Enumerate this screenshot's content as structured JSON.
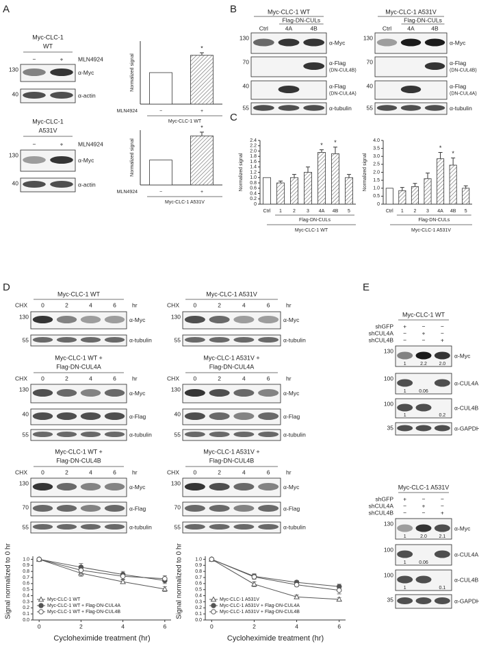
{
  "panels": [
    "A",
    "B",
    "C",
    "D",
    "E"
  ],
  "blots": [
    {
      "title": [
        "Myc-CLC-1",
        "WT"
      ],
      "treatment": "MLN4924",
      "lanes": [
        "−",
        "+"
      ],
      "rows": [
        {
          "mw": 130,
          "antibody": "α-Myc"
        },
        {
          "mw": 40,
          "antibody": "α-actin"
        }
      ]
    },
    {
      "title": [
        "Myc-CLC-1",
        "A531V"
      ],
      "treatment": "MLN4924",
      "lanes": [
        "−",
        "+"
      ],
      "rows": [
        {
          "mw": 130,
          "antibody": "α-Myc"
        },
        {
          "mw": 40,
          "antibody": "α-actin"
        }
      ]
    },
    {
      "title": [
        "Myc-CLC-1 WT"
      ],
      "header": "Flag-DN-CULs",
      "lanes": [
        "Ctrl",
        "4A",
        "4B"
      ],
      "rows": [
        {
          "mw": 130,
          "antibody": "α-Myc"
        },
        {
          "mw": 70,
          "antibody": "α-Flag",
          "detail": "(DN-CUL4B)"
        },
        {
          "mw": 40,
          "antibody": "α-Flag",
          "detail": "(DN-CUL4A)"
        },
        {
          "mw": 55,
          "antibody": "α-tubulin"
        }
      ]
    },
    {
      "title": [
        "Myc-CLC-1 A531V"
      ],
      "header": "Flag-DN-CULs",
      "lanes": [
        "Ctrl",
        "4A",
        "4B"
      ],
      "rows": [
        {
          "mw": 130,
          "antibody": "α-Myc"
        },
        {
          "mw": 70,
          "antibody": "α-Flag",
          "detail": "(DN-CUL4B)"
        },
        {
          "mw": 40,
          "antibody": "α-Flag",
          "detail": "(DN-CUL4A)"
        },
        {
          "mw": 55,
          "antibody": "α-tubulin"
        }
      ]
    },
    {
      "title": [
        "Myc-CLC-1 WT"
      ],
      "treatment": "CHX",
      "unit": "hr",
      "lanes": [
        0,
        2,
        4,
        6
      ],
      "rows": [
        {
          "mw": 130,
          "antibody": "α-Myc"
        },
        {
          "mw": 55,
          "antibody": "α-tubulin"
        }
      ]
    },
    {
      "title": [
        "Myc-CLC-1 A531V"
      ],
      "treatment": "CHX",
      "unit": "hr",
      "lanes": [
        0,
        2,
        4,
        6
      ],
      "rows": [
        {
          "mw": 130,
          "antibody": "α-Myc"
        },
        {
          "mw": 55,
          "antibody": "α-tubulin"
        }
      ]
    },
    {
      "title": [
        "Myc-CLC-1 WT +",
        "Flag-DN-CUL4A"
      ],
      "treatment": "CHX",
      "unit": "hr",
      "lanes": [
        0,
        2,
        4,
        6
      ],
      "rows": [
        {
          "mw": 130,
          "antibody": "α-Myc"
        },
        {
          "mw": 40,
          "antibody": "α-Flag"
        },
        {
          "mw": 55,
          "antibody": "α-tubulin"
        }
      ]
    },
    {
      "title": [
        "Myc-CLC-1 A531V +",
        "Flag-DN-CUL4A"
      ],
      "treatment": "CHX",
      "unit": "hr",
      "lanes": [
        0,
        2,
        4,
        6
      ],
      "rows": [
        {
          "mw": 130,
          "antibody": "α-Myc"
        },
        {
          "mw": 40,
          "antibody": "α-Flag"
        },
        {
          "mw": 55,
          "antibody": "α-tubulin"
        }
      ]
    },
    {
      "title": [
        "Myc-CLC-1 WT +",
        "Flag-DN-CUL4B"
      ],
      "treatment": "CHX",
      "unit": "hr",
      "lanes": [
        0,
        2,
        4,
        6
      ],
      "rows": [
        {
          "mw": 130,
          "antibody": "α-Myc"
        },
        {
          "mw": 70,
          "antibody": "α-Flag"
        },
        {
          "mw": 55,
          "antibody": "α-tubulin"
        }
      ]
    },
    {
      "title": [
        "Myc-CLC-1 A531V +",
        "Flag-DN-CUL4B"
      ],
      "treatment": "CHX",
      "unit": "hr",
      "lanes": [
        0,
        2,
        4,
        6
      ],
      "rows": [
        {
          "mw": 130,
          "antibody": "α-Myc"
        },
        {
          "mw": 70,
          "antibody": "α-Flag"
        },
        {
          "mw": 55,
          "antibody": "α-tubulin"
        }
      ]
    },
    {
      "title": [
        "Myc-CLC-1 WT"
      ],
      "conditions": [
        {
          "name": "shGFP",
          "marks": [
            "+",
            "−",
            "−"
          ]
        },
        {
          "name": "shCUL4A",
          "marks": [
            "−",
            "+",
            "−"
          ]
        },
        {
          "name": "shCUL4B",
          "marks": [
            "−",
            "−",
            "+"
          ]
        }
      ],
      "rows": [
        {
          "mw": 130,
          "antibody": "α-Myc",
          "quant": [
            1,
            2.2,
            {
              "value": 2,
              "label": "2.0"
            }
          ]
        },
        {
          "mw": 100,
          "antibody": "α-CUL4A",
          "quant": [
            1,
            0.06,
            null
          ]
        },
        {
          "mw": 100,
          "antibody": "α-CUL4B",
          "quant": [
            1,
            null,
            0.2
          ]
        },
        {
          "mw": 35,
          "antibody": "α-GAPDH"
        }
      ]
    },
    {
      "title": [
        "Myc-CLC-1 A531V"
      ],
      "conditions": [
        {
          "name": "shGFP",
          "marks": [
            "+",
            "−",
            "−"
          ]
        },
        {
          "name": "shCUL4A",
          "marks": [
            "−",
            "+",
            "−"
          ]
        },
        {
          "name": "shCUL4B",
          "marks": [
            "−",
            "−",
            "+"
          ]
        }
      ],
      "rows": [
        {
          "mw": 130,
          "antibody": "α-Myc",
          "quant": [
            1,
            {
              "value": 2,
              "label": "2.0"
            },
            2.1
          ]
        },
        {
          "mw": 100,
          "antibody": "α-CUL4A",
          "quant": [
            1,
            0.06,
            null
          ]
        },
        {
          "mw": 100,
          "antibody": "α-CUL4B",
          "quant": [
            1,
            null,
            0.1
          ]
        },
        {
          "mw": 35,
          "antibody": "α-GAPDH"
        }
      ]
    }
  ],
  "chart_data": [
    {
      "type": "bar",
      "y_label": "Normalized signal",
      "row_label": "MLN4924",
      "caption": "Myc-CLC-1 WT",
      "categories": [
        "−",
        "+"
      ],
      "values": [
        1,
        1.55
      ],
      "errors": [
        null,
        0.08
      ],
      "fills": [
        "white",
        "hatch"
      ],
      "significance": [
        null,
        "*"
      ],
      "ylim": [
        0,
        2
      ]
    },
    {
      "type": "bar",
      "y_label": "Normalized signal",
      "row_label": "MLN4924",
      "caption": "Myc-CLC-1 A531V",
      "categories": [
        "−",
        "+"
      ],
      "values": [
        1,
        1.97
      ],
      "errors": [
        null,
        0.15
      ],
      "fills": [
        "white",
        "hatch"
      ],
      "significance": [
        null,
        "*"
      ],
      "ylim": [
        0,
        2.2
      ]
    },
    {
      "type": "bar",
      "y_label": "Normalized signal",
      "group_label": "Flag-DN-CULs",
      "caption": "Myc-CLC-1 WT",
      "categories": [
        "Ctrl",
        "1",
        "2",
        "3",
        "4A",
        "4B",
        "5"
      ],
      "values": [
        1,
        0.8,
        1.0,
        1.2,
        1.95,
        1.9,
        1.0
      ],
      "errors": [
        null,
        0.07,
        0.12,
        0.2,
        0.1,
        0.25,
        0.12
      ],
      "fills": [
        "white",
        "hatch",
        "hatch",
        "hatch",
        "hatch",
        "hatch",
        "hatch"
      ],
      "significance": [
        null,
        null,
        null,
        null,
        "*",
        "*",
        null
      ],
      "ylim": [
        0,
        2.4
      ],
      "yticks": [
        0,
        0.2,
        0.4,
        0.6,
        0.8,
        {
          "value": 1,
          "label": "1.0"
        },
        1.2,
        1.4,
        1.6,
        1.8,
        {
          "value": 2,
          "label": "2.0"
        },
        2.2,
        2.4
      ]
    },
    {
      "type": "bar",
      "y_label": "Normalized signal",
      "group_label": "Flag-DN-CULs",
      "caption": "Myc-CLC-1 A531V",
      "categories": [
        "Ctrl",
        "1",
        "2",
        "3",
        "4A",
        "4B",
        "5"
      ],
      "values": [
        1,
        0.85,
        1.1,
        1.6,
        2.85,
        2.45,
        1.0
      ],
      "errors": [
        null,
        0.2,
        0.2,
        0.35,
        0.4,
        0.45,
        0.15
      ],
      "fills": [
        "white",
        "hatch",
        "hatch",
        "hatch",
        "hatch",
        "hatch",
        "hatch"
      ],
      "significance": [
        null,
        null,
        null,
        null,
        "*",
        "*",
        null
      ],
      "ylim": [
        0,
        4
      ],
      "yticks": [
        0,
        0.5,
        {
          "value": 1,
          "label": "1.0"
        },
        1.5,
        {
          "value": 2,
          "label": "2.0"
        },
        2.5,
        {
          "value": 3,
          "label": "3.0"
        },
        3.5,
        {
          "value": 4,
          "label": "4.0"
        }
      ]
    },
    {
      "type": "line",
      "x_label": "Cycloheximide treatment (hr)",
      "y_label": "Signal normalized to 0 hr",
      "x": [
        0,
        2,
        4,
        6
      ],
      "xlim": [
        -0.3,
        6.3
      ],
      "xticks": [
        0,
        2,
        4,
        6
      ],
      "ylim": [
        0,
        1.05
      ],
      "yticks": [
        {
          "value": 0,
          "label": "0.0"
        },
        0.1,
        0.2,
        0.3,
        0.4,
        0.5,
        0.6,
        0.7,
        0.8,
        0.9,
        {
          "value": 1,
          "label": "1.0"
        }
      ],
      "legend": "lower-left",
      "series": [
        {
          "name": "Myc-CLC-1 WT",
          "color": "#555555",
          "marker": "triangle-open",
          "values": [
            1,
            0.77,
            0.63,
            0.51
          ],
          "errors": [
            0.02,
            0.05,
            0.03,
            0.04
          ]
        },
        {
          "name": "Myc-CLC-1 WT + Flag-DN-CUL4A",
          "color": "#555555",
          "marker": "circle-filled",
          "values": [
            1,
            0.87,
            0.75,
            0.65
          ],
          "errors": [
            0.02,
            0.06,
            0.05,
            0.05
          ]
        },
        {
          "name": "Myc-CLC-1 WT + Flag-DN-CUL4B",
          "color": "#555555",
          "marker": "circle-open",
          "values": [
            1,
            0.82,
            0.72,
            0.68
          ],
          "errors": [
            0.02,
            0.06,
            0.05,
            0.05
          ]
        }
      ]
    },
    {
      "type": "line",
      "x_label": "Cycloheximide treatment (hr)",
      "y_label": "Signal normalized to 0 hr",
      "x": [
        0,
        2,
        4,
        6
      ],
      "xlim": [
        -0.3,
        6.3
      ],
      "xticks": [
        0,
        2,
        4,
        6
      ],
      "ylim": [
        0,
        1.05
      ],
      "yticks": [
        {
          "value": 0,
          "label": "0.0"
        },
        0.1,
        0.2,
        0.3,
        0.4,
        0.5,
        0.6,
        0.7,
        0.8,
        0.9,
        {
          "value": 1,
          "label": "1.0"
        }
      ],
      "legend": "lower-left",
      "series": [
        {
          "name": "Myc-CLC-1 A531V",
          "color": "#555555",
          "marker": "triangle-open",
          "values": [
            1,
            0.59,
            0.38,
            0.34
          ],
          "errors": [
            0.02,
            0.04,
            0.03,
            0.03
          ]
        },
        {
          "name": "Myc-CLC-1 A531V + Flag-DN-CUL4A",
          "color": "#555555",
          "marker": "circle-filled",
          "values": [
            1,
            0.72,
            0.62,
            0.55
          ],
          "errors": [
            0.02,
            0.04,
            0.03,
            0.04
          ]
        },
        {
          "name": "Myc-CLC-1 A531V + Flag-DN-CUL4B",
          "color": "#555555",
          "marker": "circle-open",
          "values": [
            1,
            0.71,
            0.58,
            0.49
          ],
          "errors": [
            0.02,
            0.04,
            0.03,
            0.06
          ]
        }
      ]
    }
  ]
}
